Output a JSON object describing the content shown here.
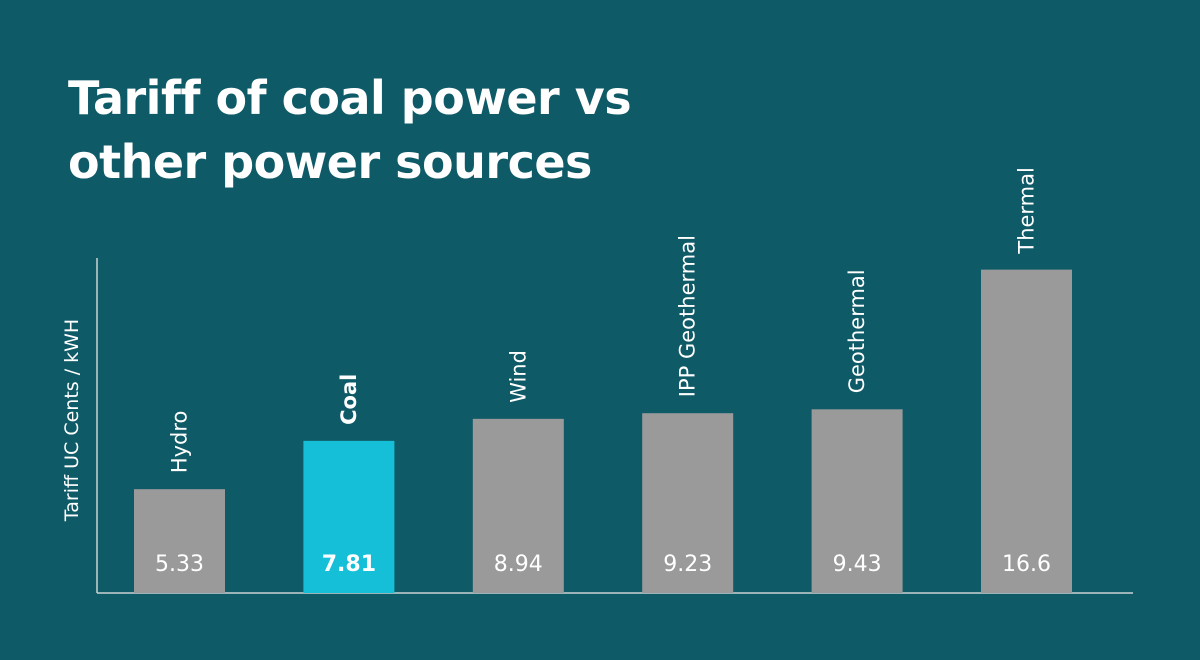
{
  "title_lines": [
    "Tariff of coal power vs",
    "other power sources"
  ],
  "colors": {
    "background": "#0f5a67",
    "bar": "#9a9a9a",
    "highlight_bar": "#15bfd8",
    "text": "#ffffff",
    "axis": "#c8d2d4"
  },
  "chart_data": {
    "type": "bar",
    "title": "Tariff of coal power vs other power sources",
    "ylabel": "Tariff UC Cents / kWH",
    "xlabel": "",
    "categories": [
      "Hydro",
      "Coal",
      "Wind",
      "IPP Geothermal",
      "Geothermal",
      "Thermal"
    ],
    "values": [
      5.33,
      7.81,
      8.94,
      9.23,
      9.43,
      16.6
    ],
    "value_labels": [
      "5.33",
      "7.81",
      "8.94",
      "9.23",
      "9.43",
      "16.6"
    ],
    "highlight": "Coal",
    "ylim": [
      0,
      17.3
    ],
    "grid": false
  }
}
